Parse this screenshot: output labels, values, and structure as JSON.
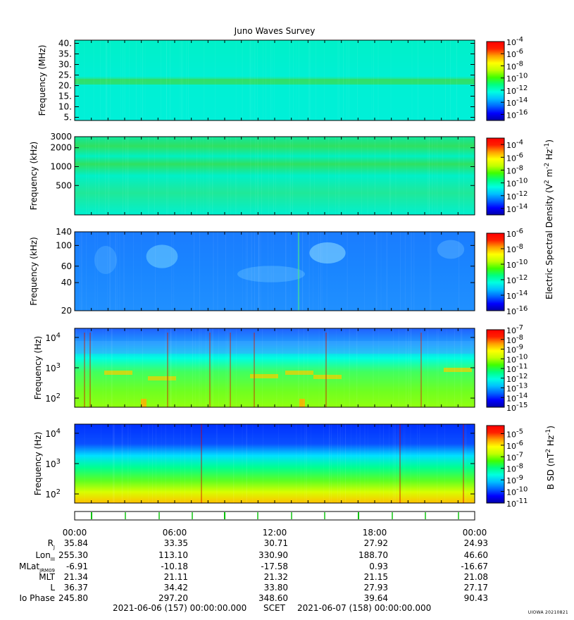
{
  "title": "Juno Waves Survey",
  "credit": "UIOWA 20210821",
  "colors": {
    "panel_low": "#0a3cff",
    "panel_mid": "#00f0d0",
    "panel_high": "#38e038",
    "tick_mark": "#00c000",
    "frame": "#000000"
  },
  "colorscale": [
    "#0000aa",
    "#0000ff",
    "#0066ff",
    "#00c0ff",
    "#00ffe0",
    "#00ff80",
    "#40ff00",
    "#c0ff00",
    "#ffff00",
    "#ffa000",
    "#ff2000",
    "#ff0000"
  ],
  "chart_data": [
    {
      "type": "heatmap",
      "name": "panel-1",
      "ylabel": "Frequency (MHz)",
      "yscale": "linear",
      "ylim": [
        3.5,
        41.5
      ],
      "yticks": [
        5,
        10,
        15,
        20,
        25,
        30,
        35,
        40
      ],
      "ytick_labels": [
        "5.",
        "10.",
        "15.",
        "20.",
        "25.",
        "30.",
        "35.",
        "40."
      ],
      "colorbar": {
        "label": "",
        "min_exp": -17,
        "max_exp": -4,
        "ticks": [
          "-4",
          "-6",
          "-8",
          "-10",
          "-12",
          "-14",
          "-16"
        ]
      }
    },
    {
      "type": "heatmap",
      "name": "panel-2",
      "ylabel": "Frequency (kHz)",
      "yscale": "log",
      "ylim": [
        170,
        3000
      ],
      "yticks": [
        500,
        1000,
        2000,
        3000
      ],
      "ytick_labels": [
        "500",
        "1000",
        "2000",
        "3000"
      ],
      "colorbar": {
        "label": "",
        "min_exp": -15,
        "max_exp": -3,
        "ticks": [
          "-4",
          "-6",
          "-8",
          "-10",
          "-12",
          "-14"
        ]
      }
    },
    {
      "type": "heatmap",
      "name": "panel-3",
      "ylabel": "Frequency (kHz)",
      "yscale": "log",
      "ylim": [
        20,
        140
      ],
      "yticks": [
        20,
        40,
        60,
        100,
        140
      ],
      "ytick_labels": [
        "20",
        "40",
        "60",
        "100",
        "140"
      ],
      "colorbar": {
        "label": "",
        "min_exp": -16,
        "max_exp": -6,
        "ticks": [
          "-6",
          "-8",
          "-10",
          "-12",
          "-14",
          "-16"
        ]
      }
    },
    {
      "type": "heatmap",
      "name": "panel-4",
      "ylabel": "Frequency (Hz)",
      "yscale": "log",
      "ylim": [
        50,
        20000
      ],
      "yticks": [
        100,
        1000,
        10000
      ],
      "ytick_labels": [
        "10^2",
        "10^3",
        "10^4"
      ],
      "colorbar": {
        "label": "",
        "min_exp": -15,
        "max_exp": -7,
        "ticks": [
          "-7",
          "-8",
          "-9",
          "-10",
          "-11",
          "-12",
          "-13",
          "-14",
          "-15"
        ]
      }
    },
    {
      "type": "heatmap",
      "name": "panel-5",
      "ylabel": "Frequency (Hz)",
      "yscale": "log",
      "ylim": [
        50,
        20000
      ],
      "yticks": [
        100,
        1000,
        10000
      ],
      "ytick_labels": [
        "10^2",
        "10^3",
        "10^4"
      ],
      "colorbar": {
        "label": "",
        "min_exp": -11,
        "max_exp": -4.3,
        "ticks": [
          "-5",
          "-6",
          "-7",
          "-8",
          "-9",
          "-10",
          "-11"
        ]
      }
    }
  ],
  "side_labels": {
    "electric": "Electric Spectral Density (V^2 m^-2 Hz^-1)",
    "magnetic": "B SD (nT^2 Hz^-1)"
  },
  "time_axis": {
    "ticks": [
      "00:00",
      "06:00",
      "12:00",
      "18:00",
      "00:00"
    ]
  },
  "ephemeris": [
    {
      "label": "R_J",
      "values": [
        "35.84",
        "33.35",
        "30.71",
        "27.92",
        "24.93"
      ]
    },
    {
      "label": "Lon_III",
      "values": [
        "255.30",
        "113.10",
        "330.90",
        "188.70",
        "46.60"
      ]
    },
    {
      "label": "MLat_JRM09",
      "values": [
        "-6.91",
        "-10.18",
        "-17.58",
        "0.93",
        "-16.67"
      ]
    },
    {
      "label": "MLT",
      "values": [
        "21.34",
        "21.11",
        "21.32",
        "21.15",
        "21.08"
      ]
    },
    {
      "label": "L",
      "values": [
        "36.37",
        "34.42",
        "33.80",
        "27.93",
        "27.17"
      ]
    },
    {
      "label": "Io Phase",
      "values": [
        "245.80",
        "297.20",
        "348.60",
        "39.64",
        "90.43"
      ]
    }
  ],
  "footer": {
    "start": "2021-06-06 (157) 00:00:00.000",
    "scet": "SCET",
    "end": "2021-06-07 (158) 00:00:00.000"
  }
}
